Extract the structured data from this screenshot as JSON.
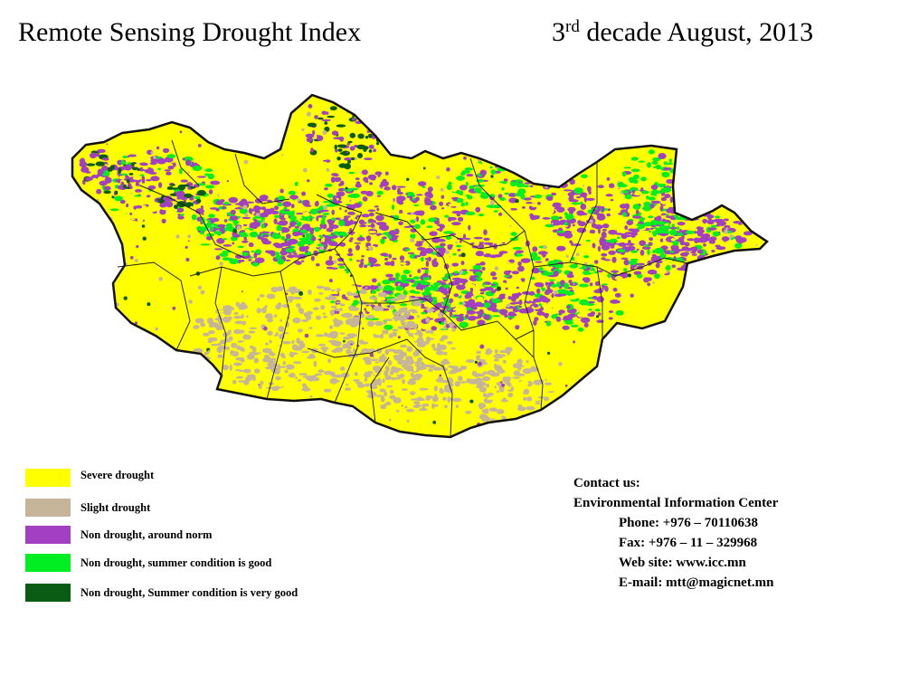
{
  "header": {
    "title": "Remote Sensing Drought Index",
    "date_ordinal": "3",
    "date_suffix": "rd",
    "date_rest": " decade August, 2013"
  },
  "legend": [
    {
      "label": "Severe drought",
      "color": "#ffff00"
    },
    {
      "label": "Slight drought",
      "color": "#c7b59a"
    },
    {
      "label": "Non drought, around norm",
      "color": "#a23fc2"
    },
    {
      "label": "Non drought, summer condition is good",
      "color": "#00ee22"
    },
    {
      "label": "Non drought, Summer condition is very good",
      "color": "#0a5c14"
    }
  ],
  "contact": {
    "heading": "Contact us:",
    "org": "Environmental Information Center",
    "phone": "Phone: +976 – 70110638",
    "fax": "Fax: +976 – 11 – 329968",
    "web": "Web site: www.icc.mn",
    "email": "E-mail: mtt@magicnet.mn"
  },
  "colors": {
    "severe": "#ffff00",
    "slight": "#c7b59a",
    "norm": "#a23fc2",
    "good": "#00ee22",
    "very_good": "#0a5c14",
    "border": "#222222"
  }
}
